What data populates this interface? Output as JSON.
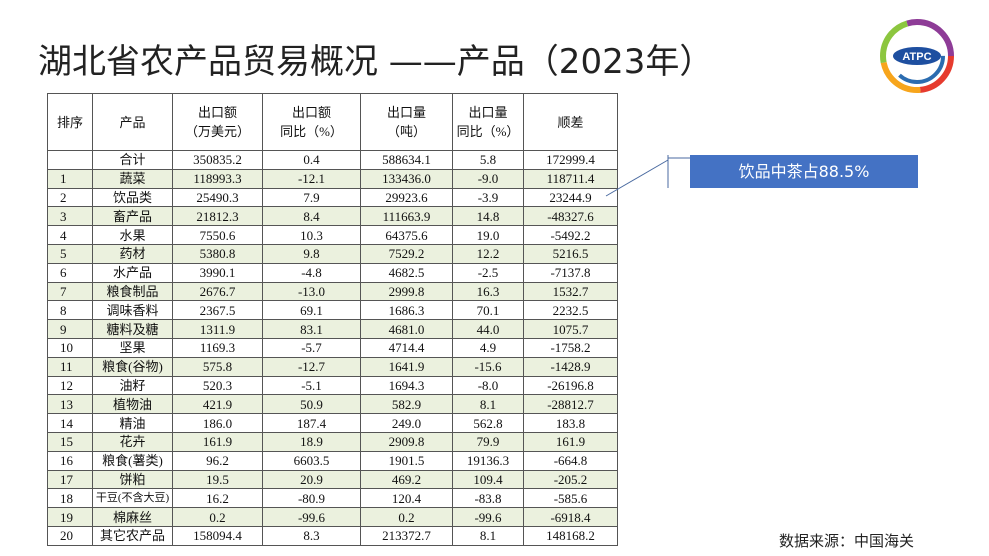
{
  "title": "湖北省农产品贸易概况 ——产品（2023年）",
  "logo": {
    "text": "ATPC"
  },
  "table": {
    "header": [
      [
        "排序"
      ],
      [
        "产品"
      ],
      [
        "出口额",
        "（万美元）"
      ],
      [
        "出口额",
        "同比（%）"
      ],
      [
        "出口量",
        "（吨）"
      ],
      [
        "出口量",
        "同比（%）"
      ],
      [
        "顺差"
      ]
    ],
    "rows": [
      [
        "",
        "合计",
        "350835.2",
        "0.4",
        "588634.1",
        "5.8",
        "172999.4"
      ],
      [
        "1",
        "蔬菜",
        "118993.3",
        "-12.1",
        "133436.0",
        "-9.0",
        "118711.4"
      ],
      [
        "2",
        "饮品类",
        "25490.3",
        "7.9",
        "29923.6",
        "-3.9",
        "23244.9"
      ],
      [
        "3",
        "畜产品",
        "21812.3",
        "8.4",
        "111663.9",
        "14.8",
        "-48327.6"
      ],
      [
        "4",
        "水果",
        "7550.6",
        "10.3",
        "64375.6",
        "19.0",
        "-5492.2"
      ],
      [
        "5",
        "药材",
        "5380.8",
        "9.8",
        "7529.2",
        "12.2",
        "5216.5"
      ],
      [
        "6",
        "水产品",
        "3990.1",
        "-4.8",
        "4682.5",
        "-2.5",
        "-7137.8"
      ],
      [
        "7",
        "粮食制品",
        "2676.7",
        "-13.0",
        "2999.8",
        "16.3",
        "1532.7"
      ],
      [
        "8",
        "调味香料",
        "2367.5",
        "69.1",
        "1686.3",
        "70.1",
        "2232.5"
      ],
      [
        "9",
        "糖料及糖",
        "1311.9",
        "83.1",
        "4681.0",
        "44.0",
        "1075.7"
      ],
      [
        "10",
        "坚果",
        "1169.3",
        "-5.7",
        "4714.4",
        "4.9",
        "-1758.2"
      ],
      [
        "11",
        "粮食(谷物)",
        "575.8",
        "-12.7",
        "1641.9",
        "-15.6",
        "-1428.9"
      ],
      [
        "12",
        "油籽",
        "520.3",
        "-5.1",
        "1694.3",
        "-8.0",
        "-26196.8"
      ],
      [
        "13",
        "植物油",
        "421.9",
        "50.9",
        "582.9",
        "8.1",
        "-28812.7"
      ],
      [
        "14",
        "精油",
        "186.0",
        "187.4",
        "249.0",
        "562.8",
        "183.8"
      ],
      [
        "15",
        "花卉",
        "161.9",
        "18.9",
        "2909.8",
        "79.9",
        "161.9"
      ],
      [
        "16",
        "粮食(薯类)",
        "96.2",
        "6603.5",
        "1901.5",
        "19136.3",
        "-664.8"
      ],
      [
        "17",
        "饼粕",
        "19.5",
        "20.9",
        "469.2",
        "109.4",
        "-205.2"
      ],
      [
        "18",
        "干豆(不含大豆)",
        "16.2",
        "-80.9",
        "120.4",
        "-83.8",
        "-585.6"
      ],
      [
        "19",
        "棉麻丝",
        "0.2",
        "-99.6",
        "0.2",
        "-99.6",
        "-6918.4"
      ],
      [
        "20",
        "其它农产品",
        "158094.4",
        "8.3",
        "213372.7",
        "8.1",
        "148168.2"
      ]
    ]
  },
  "callout": "饮品中茶占88.5%",
  "source": "数据来源：中国海关"
}
